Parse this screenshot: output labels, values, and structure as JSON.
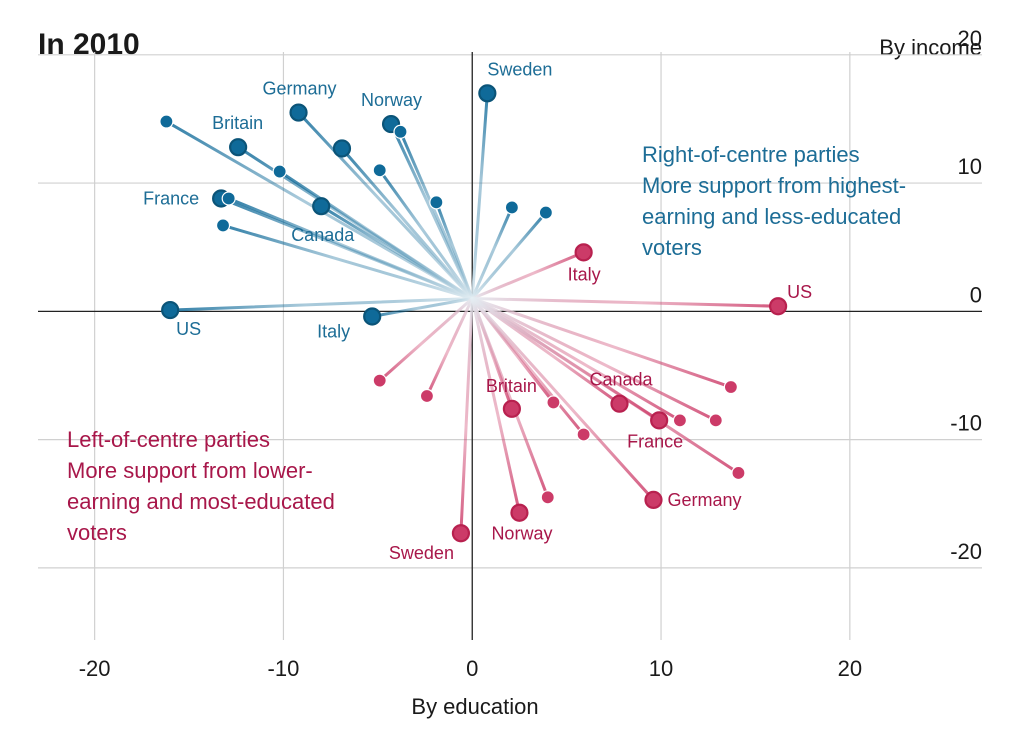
{
  "chart_data": {
    "type": "scatter",
    "title": "In 2010",
    "xlabel": "By education",
    "ylabel": "By income",
    "xlim": [
      -23,
      27
    ],
    "ylim": [
      -25,
      21
    ],
    "xticks": [
      -20,
      -10,
      0,
      10,
      20
    ],
    "yticks": [
      20,
      10,
      0,
      -10,
      -20
    ],
    "xtick_labels": [
      "-20",
      "-10",
      "0",
      "10",
      "20"
    ],
    "ytick_labels": [
      "20",
      "10",
      "0",
      "-10",
      "-20"
    ],
    "grid": true,
    "origin": [
      0,
      1
    ],
    "colors": {
      "right": "#0f6a99",
      "left": "#cc3b68",
      "right_dark": "#0b5478",
      "left_dark": "#b8214f",
      "grid": "#d0d0d0",
      "axis": "#222222",
      "fade": "#e4eef3"
    },
    "annotations": {
      "right": {
        "title": "Right-of-centre parties",
        "lines": [
          "More support from highest-",
          "earning and less-educated",
          "voters"
        ]
      },
      "left": {
        "title": "Left-of-centre parties",
        "lines": [
          "More support from lower-",
          "earning and most-educated",
          "voters"
        ]
      }
    },
    "series": [
      {
        "name": "Right-of-centre parties",
        "points": [
          {
            "label": "Sweden",
            "x": 0.8,
            "y": 17,
            "highlight": true
          },
          {
            "label": "Germany",
            "x": -9.2,
            "y": 15.5,
            "highlight": true
          },
          {
            "label": "Norway",
            "x": -4.3,
            "y": 14.6,
            "highlight": true
          },
          {
            "label": "",
            "x": -3.8,
            "y": 14.0,
            "highlight": false
          },
          {
            "label": "",
            "x": -16.2,
            "y": 14.8,
            "highlight": false
          },
          {
            "label": "Britain",
            "x": -12.4,
            "y": 12.8,
            "highlight": true
          },
          {
            "label": "",
            "x": -6.9,
            "y": 12.7,
            "highlight": true
          },
          {
            "label": "",
            "x": -10.2,
            "y": 10.9,
            "highlight": false
          },
          {
            "label": "",
            "x": -4.9,
            "y": 11.0,
            "highlight": false
          },
          {
            "label": "France",
            "x": -13.3,
            "y": 8.8,
            "highlight": true
          },
          {
            "label": "",
            "x": -12.9,
            "y": 8.8,
            "highlight": false
          },
          {
            "label": "Canada",
            "x": -8.0,
            "y": 8.2,
            "highlight": true
          },
          {
            "label": "",
            "x": -1.9,
            "y": 8.5,
            "highlight": false
          },
          {
            "label": "",
            "x": 2.1,
            "y": 8.1,
            "highlight": false
          },
          {
            "label": "",
            "x": 3.9,
            "y": 7.7,
            "highlight": false
          },
          {
            "label": "",
            "x": -13.2,
            "y": 6.7,
            "highlight": false
          },
          {
            "label": "US",
            "x": -16.0,
            "y": 0.1,
            "highlight": true
          },
          {
            "label": "Italy",
            "x": -5.3,
            "y": -0.4,
            "highlight": true
          }
        ]
      },
      {
        "name": "Left-of-centre parties",
        "points": [
          {
            "label": "Italy",
            "x": 5.9,
            "y": 4.6,
            "highlight": true
          },
          {
            "label": "US",
            "x": 16.2,
            "y": 0.4,
            "highlight": true
          },
          {
            "label": "",
            "x": -4.9,
            "y": -5.4,
            "highlight": false
          },
          {
            "label": "",
            "x": -2.4,
            "y": -6.6,
            "highlight": false
          },
          {
            "label": "",
            "x": 13.7,
            "y": -5.9,
            "highlight": false
          },
          {
            "label": "Canada",
            "x": 7.8,
            "y": -7.2,
            "highlight": true
          },
          {
            "label": "",
            "x": 4.3,
            "y": -7.1,
            "highlight": false
          },
          {
            "label": "Britain",
            "x": 2.1,
            "y": -7.6,
            "highlight": true
          },
          {
            "label": "France",
            "x": 9.9,
            "y": -8.5,
            "highlight": true
          },
          {
            "label": "",
            "x": 11.0,
            "y": -8.5,
            "highlight": false
          },
          {
            "label": "",
            "x": 12.9,
            "y": -8.5,
            "highlight": false
          },
          {
            "label": "",
            "x": 5.9,
            "y": -9.6,
            "highlight": false
          },
          {
            "label": "",
            "x": 14.1,
            "y": -12.6,
            "highlight": false
          },
          {
            "label": "",
            "x": 4.0,
            "y": -14.5,
            "highlight": false
          },
          {
            "label": "Germany",
            "x": 9.6,
            "y": -14.7,
            "highlight": true
          },
          {
            "label": "Norway",
            "x": 2.5,
            "y": -15.7,
            "highlight": true
          },
          {
            "label": "Sweden",
            "x": -0.6,
            "y": -17.3,
            "highlight": true
          }
        ]
      }
    ]
  }
}
